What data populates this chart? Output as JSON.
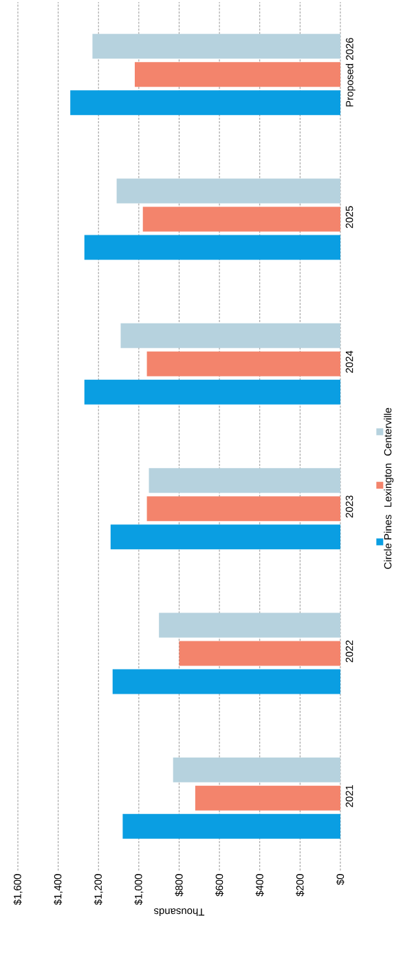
{
  "chart_data": {
    "type": "bar",
    "orientation": "horizontal",
    "xlabel": "Thousands",
    "categories": [
      "Proposed 2026",
      "2025",
      "2024",
      "2023",
      "2022",
      "2021"
    ],
    "series": [
      {
        "name": "Circle Pines",
        "color": "#0a9ee2",
        "values": [
          1340,
          1270,
          1270,
          1140,
          1130,
          1080
        ]
      },
      {
        "name": "Lexington",
        "color": "#f3846c",
        "values": [
          1020,
          980,
          960,
          960,
          800,
          720
        ]
      },
      {
        "name": "Centerville",
        "color": "#b6d2de",
        "values": [
          1230,
          1110,
          1090,
          950,
          900,
          830
        ]
      }
    ],
    "xlim": [
      1600,
      0
    ],
    "xticks": [
      {
        "value": 0,
        "label": "$0"
      },
      {
        "value": 200,
        "label": "$200"
      },
      {
        "value": 400,
        "label": "$400"
      },
      {
        "value": 600,
        "label": "$600"
      },
      {
        "value": 800,
        "label": "$800"
      },
      {
        "value": 1000,
        "label": "$1,000"
      },
      {
        "value": 1200,
        "label": "$1,200"
      },
      {
        "value": 1400,
        "label": "$1,400"
      },
      {
        "value": 1600,
        "label": "$1,600"
      }
    ],
    "grid": "x",
    "legend": "right"
  }
}
